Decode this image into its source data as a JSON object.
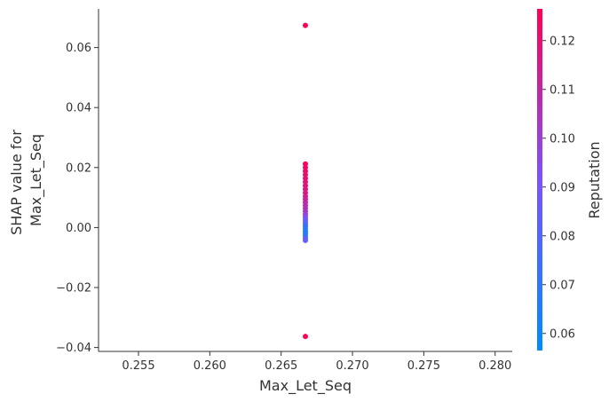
{
  "chart_data": {
    "type": "scatter",
    "title": "",
    "xlabel": "Max_Let_Seq",
    "ylabel_lines": [
      "SHAP value for",
      "Max_Let_Seq"
    ],
    "xlim": [
      0.2522,
      0.2812
    ],
    "ylim": [
      -0.0413,
      0.0729
    ],
    "xticks": [
      0.255,
      0.26,
      0.265,
      0.27,
      0.275,
      0.28
    ],
    "xtick_labels": [
      "0.255",
      "0.260",
      "0.265",
      "0.270",
      "0.275",
      "0.280"
    ],
    "yticks": [
      -0.04,
      -0.02,
      0.0,
      0.02,
      0.04,
      0.06
    ],
    "ytick_labels": [
      "−0.04",
      "−0.02",
      "0.00",
      "0.02",
      "0.04",
      "0.06"
    ],
    "grid": false,
    "colorbar": {
      "label": "Reputation",
      "range": [
        0.0565,
        0.1265
      ],
      "ticks": [
        0.06,
        0.07,
        0.08,
        0.09,
        0.1,
        0.11,
        0.12
      ],
      "tick_labels": [
        "0.06",
        "0.07",
        "0.08",
        "0.09",
        "0.10",
        "0.11",
        "0.12"
      ],
      "colors": [
        "#008bfb",
        "#7c52ff",
        "#ff0052"
      ]
    },
    "points": [
      {
        "x": 0.2667,
        "y": 0.0674,
        "c": 0.125
      },
      {
        "x": 0.2667,
        "y": 0.0212,
        "c": 0.124
      },
      {
        "x": 0.2667,
        "y": 0.02,
        "c": 0.123
      },
      {
        "x": 0.2667,
        "y": 0.0188,
        "c": 0.122
      },
      {
        "x": 0.2667,
        "y": 0.0176,
        "c": 0.121
      },
      {
        "x": 0.2667,
        "y": 0.0164,
        "c": 0.12
      },
      {
        "x": 0.2667,
        "y": 0.0152,
        "c": 0.119
      },
      {
        "x": 0.2667,
        "y": 0.014,
        "c": 0.118
      },
      {
        "x": 0.2667,
        "y": 0.0128,
        "c": 0.117
      },
      {
        "x": 0.2667,
        "y": 0.0116,
        "c": 0.116
      },
      {
        "x": 0.2667,
        "y": 0.0104,
        "c": 0.114
      },
      {
        "x": 0.2667,
        "y": 0.0094,
        "c": 0.112
      },
      {
        "x": 0.2667,
        "y": 0.0084,
        "c": 0.11
      },
      {
        "x": 0.2667,
        "y": 0.0074,
        "c": 0.108
      },
      {
        "x": 0.2667,
        "y": 0.0064,
        "c": 0.106
      },
      {
        "x": 0.2667,
        "y": 0.0054,
        "c": 0.104
      },
      {
        "x": 0.2667,
        "y": 0.0044,
        "c": 0.1
      },
      {
        "x": 0.2667,
        "y": 0.0036,
        "c": 0.095
      },
      {
        "x": 0.2667,
        "y": 0.0028,
        "c": 0.09
      },
      {
        "x": 0.2667,
        "y": 0.002,
        "c": 0.085
      },
      {
        "x": 0.2667,
        "y": 0.0012,
        "c": 0.078
      },
      {
        "x": 0.2667,
        "y": 0.0004,
        "c": 0.073
      },
      {
        "x": 0.2667,
        "y": -0.0004,
        "c": 0.068
      },
      {
        "x": 0.2667,
        "y": -0.0012,
        "c": 0.066
      },
      {
        "x": 0.2667,
        "y": -0.002,
        "c": 0.065
      },
      {
        "x": 0.2667,
        "y": -0.0028,
        "c": 0.07
      },
      {
        "x": 0.2667,
        "y": -0.0036,
        "c": 0.08
      },
      {
        "x": 0.2667,
        "y": -0.0043,
        "c": 0.085
      },
      {
        "x": 0.2667,
        "y": -0.0363,
        "c": 0.125
      }
    ]
  }
}
